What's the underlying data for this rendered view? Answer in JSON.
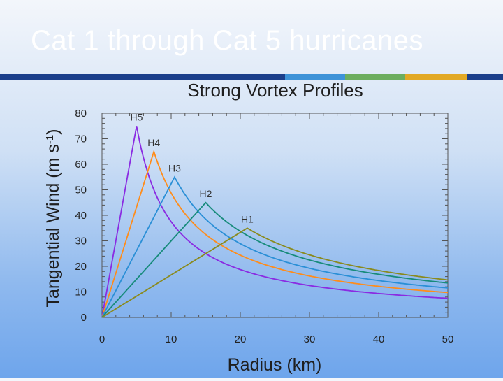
{
  "slide": {
    "title": "Cat 1 through Cat 5 hurricanes"
  },
  "colors": {
    "bar_navy": "#1b3f8b",
    "bar_blue": "#3d93d8",
    "bar_green": "#6cae5f",
    "bar_gold": "#e2a925",
    "text_dark": "#222222"
  },
  "chart_data": {
    "type": "line",
    "title": "Strong Vortex Profiles",
    "xlabel": "Radius (km)",
    "ylabel": "Tangential Wind (m s-1)",
    "ylabel_main": "Tangential Wind (m s",
    "ylabel_exp": "-1",
    "ylabel_close": ")",
    "xlim": [
      0,
      50
    ],
    "ylim": [
      0,
      80
    ],
    "xticks": [
      0,
      10,
      20,
      30,
      40,
      50
    ],
    "yticks": [
      0,
      10,
      20,
      30,
      40,
      50,
      60,
      70,
      80
    ],
    "grid": false,
    "series": [
      {
        "name": "H5",
        "rmax": 5,
        "vmax": 75,
        "color": "#8a2be2",
        "points": [
          [
            0,
            0
          ],
          [
            5,
            75
          ],
          [
            7.5,
            50
          ],
          [
            10,
            37.5
          ],
          [
            15,
            25
          ],
          [
            20,
            18.8
          ],
          [
            30,
            12.5
          ],
          [
            40,
            9.4
          ],
          [
            50,
            7.5
          ]
        ]
      },
      {
        "name": "H4",
        "rmax": 7.5,
        "vmax": 65,
        "color": "#ff8c1a",
        "points": [
          [
            0,
            0
          ],
          [
            7.5,
            65
          ],
          [
            10,
            48.8
          ],
          [
            15,
            32.5
          ],
          [
            20,
            24.4
          ],
          [
            30,
            16.3
          ],
          [
            40,
            12.2
          ],
          [
            50,
            9.8
          ]
        ]
      },
      {
        "name": "H3",
        "rmax": 10.5,
        "vmax": 55,
        "color": "#2a8fd6",
        "points": [
          [
            0,
            0
          ],
          [
            10.5,
            55
          ],
          [
            15,
            38.5
          ],
          [
            20,
            28.9
          ],
          [
            30,
            19.3
          ],
          [
            40,
            14.4
          ],
          [
            50,
            11.6
          ]
        ]
      },
      {
        "name": "H2",
        "rmax": 15,
        "vmax": 45,
        "color": "#178b7b",
        "points": [
          [
            0,
            0
          ],
          [
            15,
            45
          ],
          [
            20,
            33.8
          ],
          [
            30,
            22.5
          ],
          [
            40,
            16.9
          ],
          [
            50,
            13.5
          ]
        ]
      },
      {
        "name": "H1",
        "rmax": 21,
        "vmax": 35,
        "color": "#8a8a1e",
        "points": [
          [
            0,
            0
          ],
          [
            21,
            35
          ],
          [
            25,
            29.4
          ],
          [
            30,
            24.5
          ],
          [
            40,
            18.4
          ],
          [
            50,
            14.7
          ]
        ]
      }
    ]
  }
}
